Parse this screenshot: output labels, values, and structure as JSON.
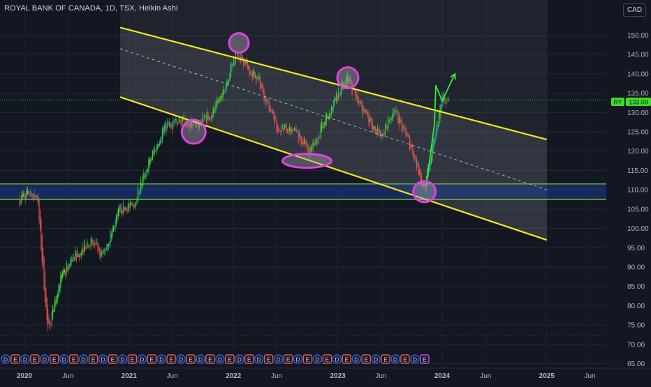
{
  "header": {
    "title": "ROYAL BANK OF CANADA, 1D, TSX, Heikin Ashi",
    "currency": "CAD"
  },
  "price_label": {
    "symbol": "RY",
    "value": "133.09"
  },
  "colors": {
    "background": "#131722",
    "up_candle": "#26a69a",
    "up_candle_bright": "#3fdd2a",
    "down_candle": "#ef5350",
    "channel_line": "#f5e61e",
    "zone_fill": "#1e3a8a",
    "zone_border": "#7ddc3a",
    "highlight_ellipse": "#e040e0",
    "arrow": "#39e639",
    "event_dividend": "#2962ff",
    "event_earnings": "#ef5350"
  },
  "chart_data": {
    "type": "candlestick",
    "title": "ROYAL BANK OF CANADA, 1D, TSX, Heikin Ashi",
    "ylim": [
      65,
      152
    ],
    "y_ticks": [
      "150.00",
      "145.00",
      "140.00",
      "135.00",
      "130.00",
      "125.00",
      "120.00",
      "115.00",
      "110.00",
      "105.00",
      "100.00",
      "95.00",
      "90.00",
      "85.00",
      "80.00",
      "75.00",
      "70.00",
      "65.00"
    ],
    "x_ticks": [
      "2020",
      "Jun",
      "2021",
      "Jun",
      "2022",
      "Jun",
      "2023",
      "Jun",
      "2024",
      "Jun",
      "2025",
      "Jun"
    ],
    "last_price": 133.09,
    "series": [
      {
        "name": "RY",
        "approx_path": [
          {
            "date": "2019-12-15",
            "price": 107.5
          },
          {
            "date": "2020-01-15",
            "price": 109.5
          },
          {
            "date": "2020-02-15",
            "price": 108.0
          },
          {
            "date": "2020-03-10",
            "price": 85.0
          },
          {
            "date": "2020-03-23",
            "price": 73.0
          },
          {
            "date": "2020-05-01",
            "price": 86.0
          },
          {
            "date": "2020-06-15",
            "price": 92.0
          },
          {
            "date": "2020-08-15",
            "price": 97.0
          },
          {
            "date": "2020-10-01",
            "price": 93.0
          },
          {
            "date": "2020-12-01",
            "price": 105.0
          },
          {
            "date": "2021-01-15",
            "price": 106.0
          },
          {
            "date": "2021-03-01",
            "price": 115.0
          },
          {
            "date": "2021-05-01",
            "price": 126.0
          },
          {
            "date": "2021-07-01",
            "price": 128.0
          },
          {
            "date": "2021-09-01",
            "price": 127.0
          },
          {
            "date": "2021-11-01",
            "price": 131.0
          },
          {
            "date": "2022-01-15",
            "price": 146.0
          },
          {
            "date": "2022-02-15",
            "price": 142.0
          },
          {
            "date": "2022-04-01",
            "price": 138.0
          },
          {
            "date": "2022-06-01",
            "price": 126.0
          },
          {
            "date": "2022-08-01",
            "price": 125.0
          },
          {
            "date": "2022-10-01",
            "price": 120.0
          },
          {
            "date": "2022-12-01",
            "price": 130.0
          },
          {
            "date": "2023-02-01",
            "price": 139.0
          },
          {
            "date": "2023-04-01",
            "price": 130.0
          },
          {
            "date": "2023-06-01",
            "price": 124.0
          },
          {
            "date": "2023-07-15",
            "price": 131.0
          },
          {
            "date": "2023-09-15",
            "price": 121.0
          },
          {
            "date": "2023-10-31",
            "price": 110.0
          },
          {
            "date": "2023-12-01",
            "price": 122.0
          },
          {
            "date": "2024-01-01",
            "price": 133.5
          },
          {
            "date": "2024-01-25",
            "price": 133.09
          }
        ]
      }
    ],
    "annotations": {
      "channel_upper": {
        "from": {
          "date": "2020-12-01",
          "price": 152.0
        },
        "to": {
          "date": "2025-01-01",
          "price": 123.0
        }
      },
      "channel_lower": {
        "from": {
          "date": "2020-12-01",
          "price": 134.0
        },
        "to": {
          "date": "2025-01-01",
          "price": 97.0
        }
      },
      "channel_mid": {
        "from": {
          "date": "2020-12-01",
          "price": 146.5
        },
        "to": {
          "date": "2025-01-01",
          "price": 110.0
        }
      },
      "support_zone": {
        "low": 107.5,
        "high": 111.5
      },
      "highlighted_points": [
        {
          "date": "2021-08-15",
          "price": 125.0
        },
        {
          "date": "2022-01-20",
          "price": 148.0
        },
        {
          "date": "2022-09-15",
          "price": 117.5
        },
        {
          "date": "2023-02-05",
          "price": 139.0
        },
        {
          "date": "2023-10-31",
          "price": 109.5
        }
      ],
      "projection_arrow": {
        "from": {
          "date": "2024-01-01",
          "price": 133.0
        },
        "to": {
          "date": "2024-02-15",
          "price": 140.0
        }
      }
    },
    "events": [
      "D",
      "E",
      "D",
      "E",
      "D",
      "E",
      "D",
      "E",
      "D",
      "E",
      "D",
      "E",
      "D",
      "E",
      "D",
      "E",
      "D",
      "E",
      "D",
      "E",
      "D",
      "E",
      "D",
      "E",
      "D",
      "E",
      "D",
      "E",
      "D",
      "E",
      "D",
      "E",
      "D",
      "E",
      "D",
      "E",
      "D",
      "E",
      "D",
      "E",
      "D",
      "E",
      "D",
      "E"
    ]
  }
}
